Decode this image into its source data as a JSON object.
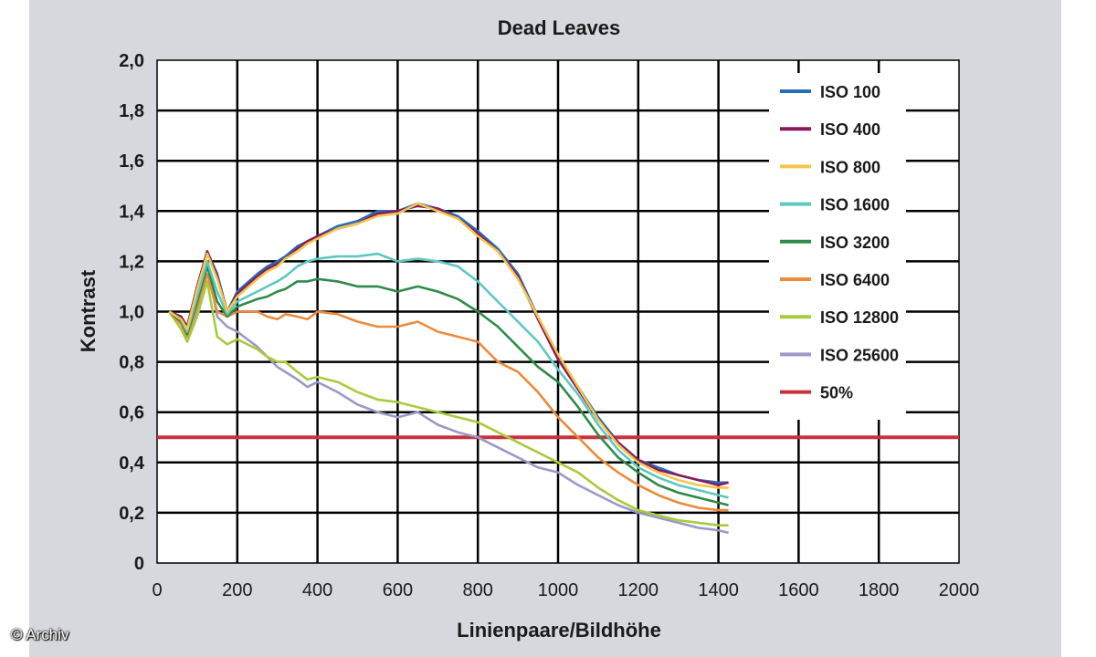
{
  "credit": "© Archiv",
  "chart_data": {
    "type": "line",
    "title": "Dead Leaves",
    "xlabel": "Linienpaare/Bildhöhe",
    "ylabel": "Kontrast",
    "xlim": [
      0,
      2000
    ],
    "ylim": [
      0,
      2.0
    ],
    "x_ticks": [
      "0",
      "200",
      "400",
      "600",
      "800",
      "1000",
      "1200",
      "1400",
      "1600",
      "1800",
      "2000"
    ],
    "y_ticks": [
      "0",
      "0,2",
      "0,4",
      "0,6",
      "0,8",
      "1,0",
      "1,2",
      "1,4",
      "1,6",
      "1,8",
      "2,0"
    ],
    "grid": true,
    "legend_position": "top-right",
    "series": [
      {
        "name": "ISO 100",
        "color": "#2a6db5",
        "x": [
          30,
          60,
          75,
          100,
          125,
          150,
          175,
          200,
          250,
          275,
          300,
          320,
          350,
          375,
          400,
          450,
          500,
          550,
          600,
          650,
          700,
          750,
          800,
          850,
          900,
          950,
          1000,
          1050,
          1100,
          1150,
          1200,
          1250,
          1300,
          1350,
          1400,
          1425
        ],
        "y": [
          1.0,
          0.98,
          0.94,
          1.1,
          1.24,
          1.15,
          1.0,
          1.08,
          1.15,
          1.18,
          1.2,
          1.22,
          1.26,
          1.28,
          1.3,
          1.34,
          1.36,
          1.4,
          1.4,
          1.43,
          1.41,
          1.38,
          1.32,
          1.25,
          1.15,
          0.98,
          0.82,
          0.7,
          0.58,
          0.48,
          0.41,
          0.38,
          0.35,
          0.33,
          0.32,
          0.32
        ]
      },
      {
        "name": "ISO 400",
        "color": "#8a1a5e",
        "x": [
          30,
          60,
          75,
          100,
          125,
          150,
          175,
          200,
          250,
          275,
          300,
          320,
          350,
          375,
          400,
          450,
          500,
          550,
          600,
          650,
          700,
          750,
          800,
          850,
          900,
          950,
          1000,
          1050,
          1100,
          1150,
          1200,
          1250,
          1300,
          1350,
          1400,
          1425
        ],
        "y": [
          1.0,
          0.98,
          0.94,
          1.1,
          1.24,
          1.14,
          1.0,
          1.07,
          1.14,
          1.17,
          1.19,
          1.21,
          1.25,
          1.28,
          1.3,
          1.33,
          1.35,
          1.39,
          1.4,
          1.42,
          1.41,
          1.37,
          1.31,
          1.24,
          1.14,
          0.97,
          0.81,
          0.69,
          0.57,
          0.48,
          0.41,
          0.37,
          0.35,
          0.33,
          0.31,
          0.32
        ]
      },
      {
        "name": "ISO 800",
        "color": "#f3c64a",
        "x": [
          30,
          60,
          75,
          100,
          125,
          150,
          175,
          200,
          250,
          275,
          300,
          320,
          350,
          375,
          400,
          450,
          500,
          550,
          600,
          650,
          700,
          750,
          800,
          850,
          900,
          950,
          1000,
          1050,
          1100,
          1150,
          1200,
          1250,
          1300,
          1350,
          1400,
          1425
        ],
        "y": [
          1.0,
          0.97,
          0.93,
          1.09,
          1.23,
          1.13,
          1.0,
          1.06,
          1.13,
          1.16,
          1.18,
          1.21,
          1.24,
          1.27,
          1.29,
          1.33,
          1.35,
          1.38,
          1.39,
          1.43,
          1.4,
          1.37,
          1.3,
          1.24,
          1.13,
          0.98,
          0.83,
          0.7,
          0.57,
          0.47,
          0.4,
          0.36,
          0.33,
          0.31,
          0.3,
          0.3
        ]
      },
      {
        "name": "ISO 1600",
        "color": "#5ec7c2",
        "x": [
          30,
          60,
          75,
          100,
          125,
          150,
          175,
          200,
          250,
          275,
          300,
          320,
          350,
          375,
          400,
          450,
          500,
          550,
          600,
          650,
          700,
          750,
          800,
          850,
          900,
          950,
          1000,
          1050,
          1100,
          1150,
          1200,
          1250,
          1300,
          1350,
          1400,
          1425
        ],
        "y": [
          1.0,
          0.97,
          0.92,
          1.06,
          1.2,
          1.08,
          0.99,
          1.04,
          1.08,
          1.1,
          1.12,
          1.14,
          1.18,
          1.2,
          1.21,
          1.22,
          1.22,
          1.23,
          1.2,
          1.21,
          1.2,
          1.18,
          1.12,
          1.04,
          0.96,
          0.88,
          0.77,
          0.67,
          0.55,
          0.45,
          0.38,
          0.34,
          0.31,
          0.29,
          0.27,
          0.26
        ]
      },
      {
        "name": "ISO 3200",
        "color": "#2e8b4a",
        "x": [
          30,
          60,
          75,
          100,
          125,
          150,
          175,
          200,
          250,
          275,
          300,
          320,
          350,
          375,
          400,
          450,
          500,
          550,
          600,
          650,
          700,
          750,
          800,
          850,
          900,
          950,
          1000,
          1050,
          1100,
          1150,
          1200,
          1250,
          1300,
          1350,
          1400,
          1425
        ],
        "y": [
          1.0,
          0.96,
          0.91,
          1.04,
          1.18,
          1.04,
          0.98,
          1.02,
          1.05,
          1.06,
          1.08,
          1.09,
          1.12,
          1.12,
          1.13,
          1.12,
          1.1,
          1.1,
          1.08,
          1.1,
          1.08,
          1.05,
          1.0,
          0.94,
          0.86,
          0.78,
          0.72,
          0.62,
          0.51,
          0.42,
          0.36,
          0.31,
          0.28,
          0.26,
          0.24,
          0.23
        ]
      },
      {
        "name": "ISO 6400",
        "color": "#ee8a3c",
        "x": [
          30,
          60,
          75,
          100,
          125,
          150,
          175,
          200,
          250,
          275,
          300,
          320,
          350,
          375,
          400,
          450,
          500,
          550,
          600,
          650,
          700,
          750,
          800,
          850,
          900,
          950,
          1000,
          1050,
          1100,
          1150,
          1200,
          1250,
          1300,
          1350,
          1400,
          1425
        ],
        "y": [
          1.0,
          0.95,
          0.9,
          1.02,
          1.15,
          1.0,
          0.98,
          1.0,
          1.0,
          0.98,
          0.97,
          0.99,
          0.98,
          0.97,
          1.0,
          0.99,
          0.96,
          0.94,
          0.94,
          0.96,
          0.92,
          0.9,
          0.88,
          0.8,
          0.76,
          0.68,
          0.58,
          0.5,
          0.42,
          0.36,
          0.31,
          0.27,
          0.24,
          0.22,
          0.21,
          0.21
        ]
      },
      {
        "name": "ISO 12800",
        "color": "#a8cc3c",
        "x": [
          30,
          60,
          75,
          100,
          125,
          150,
          175,
          200,
          250,
          275,
          300,
          320,
          350,
          375,
          400,
          450,
          500,
          550,
          600,
          650,
          700,
          750,
          800,
          850,
          900,
          950,
          1000,
          1050,
          1100,
          1150,
          1200,
          1250,
          1300,
          1350,
          1400,
          1425
        ],
        "y": [
          1.0,
          0.93,
          0.88,
          0.98,
          1.12,
          0.9,
          0.87,
          0.89,
          0.85,
          0.82,
          0.8,
          0.8,
          0.76,
          0.73,
          0.74,
          0.72,
          0.68,
          0.65,
          0.64,
          0.62,
          0.6,
          0.58,
          0.56,
          0.52,
          0.48,
          0.44,
          0.4,
          0.36,
          0.3,
          0.25,
          0.21,
          0.19,
          0.17,
          0.16,
          0.15,
          0.15
        ]
      },
      {
        "name": "ISO 25600",
        "color": "#9b99c7",
        "x": [
          30,
          60,
          75,
          100,
          125,
          150,
          175,
          200,
          250,
          275,
          300,
          320,
          350,
          375,
          400,
          450,
          500,
          550,
          600,
          650,
          700,
          750,
          800,
          850,
          900,
          950,
          1000,
          1050,
          1100,
          1150,
          1200,
          1250,
          1300,
          1350,
          1400,
          1425
        ],
        "y": [
          1.0,
          0.96,
          0.9,
          1.0,
          1.2,
          0.98,
          0.94,
          0.92,
          0.86,
          0.82,
          0.78,
          0.76,
          0.73,
          0.7,
          0.72,
          0.68,
          0.63,
          0.6,
          0.58,
          0.6,
          0.55,
          0.52,
          0.5,
          0.46,
          0.42,
          0.38,
          0.36,
          0.31,
          0.27,
          0.23,
          0.2,
          0.18,
          0.16,
          0.14,
          0.13,
          0.12
        ]
      },
      {
        "name": "50%",
        "color": "#c8323c",
        "x": [
          0,
          2000
        ],
        "y": [
          0.5,
          0.5
        ]
      }
    ]
  }
}
